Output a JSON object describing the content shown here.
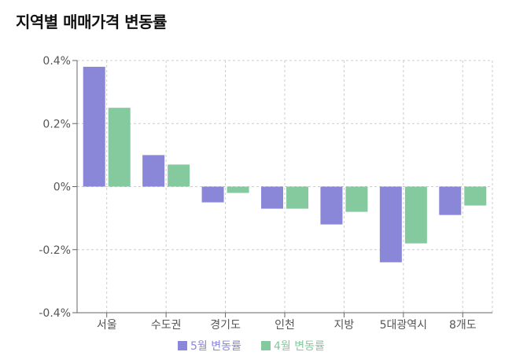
{
  "title": "지역별 매매가격 변동률",
  "chart_data": {
    "type": "bar",
    "title": "지역별 매매가격 변동률",
    "categories": [
      "서울",
      "수도권",
      "경기도",
      "인천",
      "지방",
      "5대광역시",
      "8개도"
    ],
    "series": [
      {
        "name": "5월 변동률",
        "color": "#8a86d8",
        "values": [
          0.38,
          0.1,
          -0.05,
          -0.07,
          -0.12,
          -0.24,
          -0.09
        ]
      },
      {
        "name": "4월 변동률",
        "color": "#85c99e",
        "values": [
          0.25,
          0.07,
          -0.02,
          -0.07,
          -0.08,
          -0.18,
          -0.06
        ]
      }
    ],
    "yticks": [
      "0.4%",
      "0.2%",
      "0%",
      "-0.2%",
      "-0.4%"
    ],
    "ytick_values": [
      0.4,
      0.2,
      0,
      -0.2,
      -0.4
    ],
    "ylim": [
      -0.4,
      0.4
    ],
    "grid": true,
    "legend_position": "bottom"
  }
}
